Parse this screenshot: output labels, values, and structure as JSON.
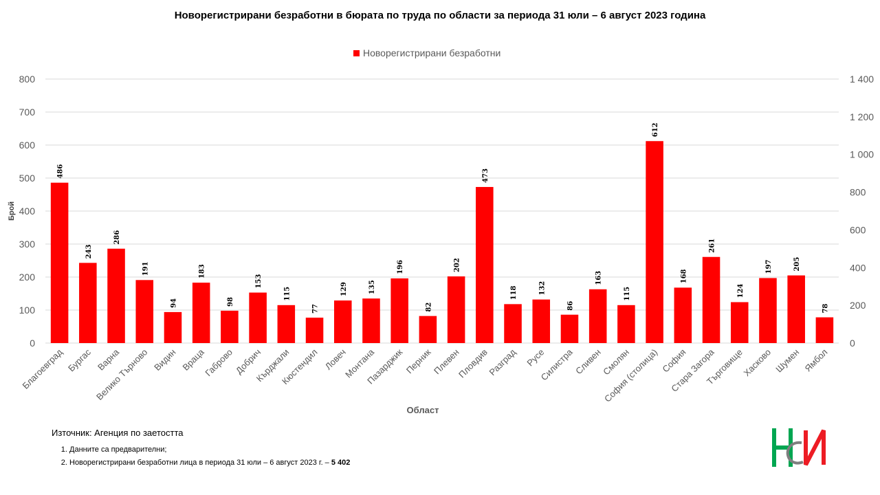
{
  "chart_data": {
    "type": "bar",
    "title": "Новорегистрирани безработни в бюрата по труда по области за периода 31 юли – 6 август 2023 година",
    "ylabel": "Брой",
    "xlabel": "Област",
    "ylim": [
      0,
      800
    ],
    "yticks": [
      "0",
      "100",
      "200",
      "300",
      "400",
      "500",
      "600",
      "700",
      "800"
    ],
    "y2lim": [
      0,
      1400
    ],
    "y2ticks": [
      "0",
      "200",
      "400",
      "600",
      "800",
      "1 000",
      "1 200",
      "1 400"
    ],
    "grid": true,
    "legend_position": "top-center",
    "color": "#ff0000",
    "categories": [
      "Благоевград",
      "Бургас",
      "Варна",
      "Велико Търново",
      "Видин",
      "Враца",
      "Габрово",
      "Добрич",
      "Кърджали",
      "Кюстендил",
      "Ловеч",
      "Монтана",
      "Пазарджик",
      "Перник",
      "Плевен",
      "Пловдив",
      "Разград",
      "Русе",
      "Силистра",
      "Сливен",
      "Смолян",
      "София (столица)",
      "София",
      "Стара Загора",
      "Търговище",
      "Хасково",
      "Шумен",
      "Ямбол"
    ],
    "series": [
      {
        "name": "Новорегистрирани безработни",
        "values": [
          486,
          243,
          286,
          191,
          94,
          183,
          98,
          153,
          115,
          77,
          129,
          135,
          196,
          82,
          202,
          473,
          118,
          132,
          86,
          163,
          115,
          612,
          168,
          261,
          124,
          197,
          205,
          78
        ]
      }
    ]
  },
  "footer": {
    "source": "Източник: Агенция по заетостта",
    "note1": "Данните са предварителни;",
    "note2_prefix": "Новорегистрирани безработни лица в периода 31 юли – 6 август 2023 г. – ",
    "note2_value": "5 402"
  },
  "logo": {
    "icon": "ncpi-logo-icon",
    "colors": [
      "#00a651",
      "#ed1c24",
      "#7f7f7f"
    ]
  }
}
